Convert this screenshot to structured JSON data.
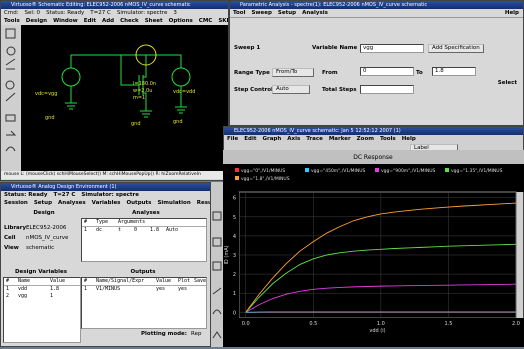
{
  "schematic": {
    "title": "Virtuoso® Schematic Editing: ELEC952-2006 nMOS_IV_curve schematic",
    "status": [
      "Cmd:",
      "Sel: 0",
      "Status: Ready",
      "T=27 C",
      "Simulator: spectre",
      "3"
    ],
    "menus": [
      "Tools",
      "Design",
      "Window",
      "Edit",
      "Add",
      "Check",
      "Sheet",
      "Options",
      "CMC",
      "SKILL",
      "NeoCell"
    ],
    "labels": [
      "vdc=vgg",
      "gnd",
      "l=180.0n",
      "w=2.0u",
      "m=1",
      "gnd",
      "vdc=vdd",
      "gnd"
    ],
    "mouse": "mouse L: (mouseClick) schHiMouseSelect()  M: schHiMousePopUp()  R: hiZoomRelativeIn"
  },
  "parametric": {
    "title": "Parametric Analysis - spectre(1): ELEC952-2006 nMOS_IV_curve schematic",
    "menus": [
      "Tool",
      "Sweep",
      "Setup",
      "Analysis"
    ],
    "help": "Help",
    "sweep": "Sweep 1",
    "variable_label": "Variable Name",
    "variable": "vgg",
    "add_spec": "Add Specification",
    "range_label": "Range Type",
    "range": "From/To",
    "from_label": "From",
    "from": "0",
    "to_label": "To",
    "to": "1.8",
    "step_label": "Step Control",
    "step": "Auto",
    "total_label": "Total Steps",
    "select": "Select"
  },
  "ade": {
    "title": "Virtuoso® Analog Design Environment (1)",
    "status": [
      "Status: Ready",
      "T=27 C",
      "Simulator: spectre"
    ],
    "menus": [
      "Session",
      "Setup",
      "Analyses",
      "Variables",
      "Outputs",
      "Simulation",
      "Results",
      "Tools",
      "Help"
    ],
    "design_head": "Design",
    "analyses_head": "Analyses",
    "design": [
      [
        "Library",
        "ELEC952-2006"
      ],
      [
        "Cell",
        "nMOS_IV_curve"
      ],
      [
        "View",
        "schematic"
      ]
    ],
    "analyses": {
      "header": [
        "#",
        "Type",
        "Arguments"
      ],
      "rows": [
        [
          "1",
          "dc",
          "t",
          "0",
          "1.8",
          "Auto"
        ]
      ]
    },
    "variables_head": "Design Variables",
    "variables": {
      "header": [
        "#",
        "Name",
        "Value"
      ],
      "rows": [
        [
          "1",
          "vdd",
          "1.8"
        ],
        [
          "2",
          "vgg",
          "1"
        ]
      ]
    },
    "outputs_head": "Outputs",
    "outputs": {
      "header": [
        "#",
        "Name/Signal/Expr",
        "Value",
        "Plot",
        "Save"
      ],
      "rows": [
        [
          "1",
          "V1/MINUS",
          "yes",
          "yes"
        ]
      ]
    },
    "plotting": "Plotting mode:",
    "plotting_value": "Rep"
  },
  "waveform": {
    "title": "ELEC952-2006 nMOS_IV_curve schematic: Jan 5 12:52:12 2007 (1)",
    "menus": [
      "File",
      "Edit",
      "Graph",
      "Axis",
      "Trace",
      "Marker",
      "Zoom",
      "Tools",
      "Help"
    ],
    "label": "Label",
    "brand": "cadence"
  },
  "chart_data": {
    "type": "line",
    "title": "DC Response",
    "ylabel": "ID (mA)",
    "xlabel": "vdd (i)",
    "x": [
      0,
      0.1,
      0.2,
      0.3,
      0.4,
      0.5,
      0.6,
      0.7,
      0.8,
      0.9,
      1.0,
      1.1,
      1.2,
      1.3,
      1.4,
      1.5,
      1.6,
      1.7,
      1.8,
      1.9,
      2.0
    ],
    "series": [
      {
        "name": "vgg=\"0\",/V1/MINUS",
        "color": "#ff3030",
        "values": [
          0,
          0,
          0,
          0,
          0,
          0,
          0,
          0,
          0,
          0,
          0,
          0,
          0,
          0,
          0,
          0,
          0,
          0,
          0,
          0,
          0
        ]
      },
      {
        "name": "vgg=\"450m\",/V1/MINUS",
        "color": "#30c8ff",
        "values": [
          0,
          0.01,
          0.02,
          0.02,
          0.02,
          0.02,
          0.02,
          0.02,
          0.02,
          0.02,
          0.02,
          0.02,
          0.02,
          0.02,
          0.02,
          0.02,
          0.02,
          0.02,
          0.02,
          0.02,
          0.02
        ]
      },
      {
        "name": "vgg=\"900m\",/V1/MINUS",
        "color": "#e040e0",
        "values": [
          0,
          0.4,
          0.72,
          0.95,
          1.1,
          1.2,
          1.26,
          1.3,
          1.33,
          1.35,
          1.37,
          1.38,
          1.39,
          1.4,
          1.41,
          1.42,
          1.43,
          1.44,
          1.45,
          1.46,
          1.47
        ]
      },
      {
        "name": "vgg=\"1.35\",/V1/MINUS",
        "color": "#60e040",
        "values": [
          0,
          0.8,
          1.5,
          2.05,
          2.5,
          2.8,
          3.0,
          3.12,
          3.2,
          3.26,
          3.3,
          3.34,
          3.37,
          3.4,
          3.43,
          3.46,
          3.48,
          3.5,
          3.52,
          3.54,
          3.56
        ]
      },
      {
        "name": "vgg=\"1.8\",/V1/MINUS",
        "color": "#ffa030",
        "values": [
          0,
          0.95,
          1.8,
          2.55,
          3.2,
          3.7,
          4.15,
          4.5,
          4.8,
          5.0,
          5.15,
          5.25,
          5.33,
          5.4,
          5.46,
          5.51,
          5.56,
          5.6,
          5.64,
          5.68,
          5.72
        ]
      }
    ],
    "xlim": [
      -0.05,
      2.0
    ],
    "xticks": [
      {
        "value": 0,
        "label": "0.0"
      },
      {
        "value": 0.5,
        "label": "0.5"
      },
      {
        "value": 1.0,
        "label": "1.0"
      },
      {
        "value": 1.5,
        "label": "1.5"
      },
      {
        "value": 2.0,
        "label": "2.0"
      }
    ],
    "ylim": [
      -0.3,
      6.3
    ],
    "yticks": [
      0,
      1,
      2,
      3,
      4,
      5,
      6
    ],
    "grid": true
  }
}
